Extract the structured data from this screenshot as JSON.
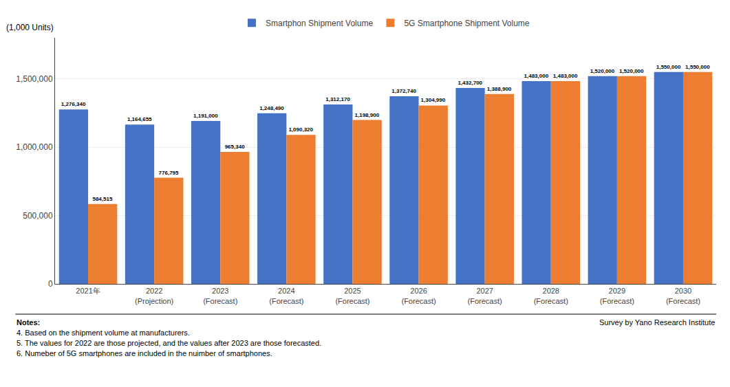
{
  "chart_data": {
    "type": "bar",
    "categories": [
      "2021年",
      "2022\n(Projection)",
      "2023\n(Forecast)",
      "2024\n(Forecast)",
      "2025\n(Forecast)",
      "2026\n(Forecast)",
      "2027\n(Forecast)",
      "2028\n(Forecast)",
      "2029\n(Forecast)",
      "2030\n(Forecast)"
    ],
    "series": [
      {
        "name": "Smartphon Shipment Volume",
        "color": "#4472C4",
        "values": [
          1276340,
          1164655,
          1191000,
          1248490,
          1312170,
          1372740,
          1432700,
          1483000,
          1520000,
          1550000
        ],
        "value_labels": [
          "1,276,340",
          "1,164,655",
          "1,191,000",
          "1,248,490",
          "1,312,170",
          "1,372,740",
          "1,432,700",
          "1,483,000",
          "1,520,000",
          "1,550,000"
        ]
      },
      {
        "name": "5G Smartphone Shipment Volume",
        "color": "#ED7D31",
        "values": [
          584515,
          776795,
          965340,
          1090320,
          1198900,
          1304990,
          1388900,
          1483000,
          1520000,
          1550000
        ],
        "value_labels": [
          "584,515",
          "776,795",
          "965,340",
          "1,090,320",
          "1,198,900",
          "1,304,990",
          "1,388,900",
          "1,483,000",
          "1,520,000",
          "1,550,000"
        ]
      }
    ],
    "ylabel": "(1,000 Units)",
    "ylim": [
      0,
      1800000
    ],
    "yticks": [
      0,
      {
        "value": 500000,
        "label": "500,000"
      },
      {
        "value": 1000000,
        "label": "1,000,000"
      },
      {
        "value": 1500000,
        "label": "1,500,000"
      }
    ],
    "grid": true,
    "legend": "top",
    "data_labels": true,
    "annotations": [
      "Notes:",
      "4. Based on the shipment volume at manufacturers.",
      "5. The values for 2022 are those projected, and the values after 2023 are those forecasted.",
      "6. Numeber of 5G smartphones are included in the nuimber of smartphones.",
      "Survey by Yano Research Institute"
    ]
  }
}
